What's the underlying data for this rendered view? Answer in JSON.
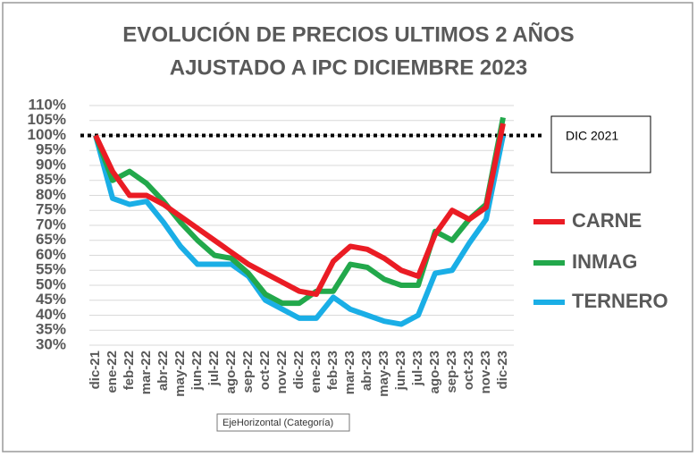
{
  "chart_data": {
    "type": "line",
    "title": "EVOLUCIÓN DE PRECIOS ULTIMOS 2 AÑOS",
    "subtitle": "AJUSTADO A IPC  DICIEMBRE 2023",
    "categories": [
      "dic-21",
      "ene-22",
      "feb-22",
      "mar-22",
      "abr-22",
      "may-22",
      "jun-22",
      "jul-22",
      "ago-22",
      "sep-22",
      "oct-22",
      "nov-22",
      "dic-22",
      "ene-23",
      "feb-23",
      "mar-23",
      "abr-23",
      "may-23",
      "jun-23",
      "jul-23",
      "ago-23",
      "sep-23",
      "oct-23",
      "nov-23",
      "dic-23"
    ],
    "series": [
      {
        "name": "CARNE",
        "color": "#ea1c24",
        "values": [
          100,
          88,
          80,
          80,
          77,
          73,
          69,
          65,
          61,
          57,
          54,
          51,
          48,
          47,
          58,
          63,
          62,
          59,
          55,
          53,
          67,
          75,
          72,
          76,
          104
        ]
      },
      {
        "name": "INMAG",
        "color": "#22a84b",
        "values": [
          100,
          85,
          88,
          84,
          78,
          71,
          65,
          60,
          59,
          54,
          47,
          44,
          44,
          48,
          48,
          57,
          56,
          52,
          50,
          50,
          68,
          65,
          72,
          77,
          106
        ]
      },
      {
        "name": "TERNERO",
        "color": "#1aaee6",
        "values": [
          100,
          79,
          77,
          78,
          71,
          63,
          57,
          57,
          57,
          53,
          45,
          42,
          39,
          39,
          46,
          42,
          40,
          38,
          37,
          40,
          54,
          55,
          64,
          72,
          100
        ]
      }
    ],
    "ylim": [
      30,
      110
    ],
    "yticks": [
      {
        "value": 30,
        "label": "30%"
      },
      {
        "value": 35,
        "label": "35%"
      },
      {
        "value": 40,
        "label": "40%"
      },
      {
        "value": 45,
        "label": "45%"
      },
      {
        "value": 50,
        "label": "50%"
      },
      {
        "value": 55,
        "label": "55%"
      },
      {
        "value": 60,
        "label": "60%"
      },
      {
        "value": 65,
        "label": "65%"
      },
      {
        "value": 70,
        "label": "70%"
      },
      {
        "value": 75,
        "label": "75%"
      },
      {
        "value": 80,
        "label": "80%"
      },
      {
        "value": 85,
        "label": "85%"
      },
      {
        "value": 90,
        "label": "90%"
      },
      {
        "value": 95,
        "label": "95%"
      },
      {
        "value": 100,
        "label": "100%"
      },
      {
        "value": 105,
        "label": "105%"
      },
      {
        "value": 110,
        "label": "110%"
      }
    ],
    "grid": true,
    "reference_line": {
      "value": 100,
      "label": "DIC 2021"
    },
    "legend": "right",
    "tooltip": "EjeHorizontal (Categoría)"
  }
}
